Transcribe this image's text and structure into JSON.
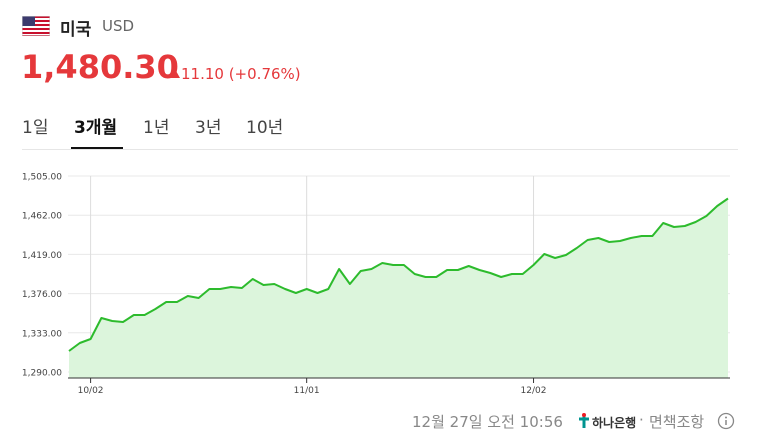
{
  "header": {
    "country": "미국",
    "currency": "USD",
    "price": "1,480.30",
    "change": "11.10 (+0.76%)"
  },
  "tabs": [
    "1일",
    "3개월",
    "1년",
    "3년",
    "10년"
  ],
  "footer": {
    "timestamp": "12월 27일 오전 10:56",
    "bank": "하나은행",
    "separator": "·",
    "disclaimer": "면책조항"
  },
  "chart_data": {
    "type": "area",
    "categories": [
      null,
      null,
      "10/02",
      null,
      null,
      null,
      null,
      null,
      null,
      null,
      null,
      null,
      null,
      null,
      null,
      null,
      null,
      null,
      null,
      null,
      null,
      null,
      "11/01",
      null,
      null,
      null,
      null,
      null,
      null,
      null,
      null,
      null,
      null,
      null,
      null,
      null,
      null,
      null,
      null,
      null,
      null,
      null,
      null,
      "12/02",
      null,
      null,
      null,
      null,
      null,
      null,
      null,
      null,
      null,
      null,
      null,
      null,
      null,
      null,
      null,
      null,
      null,
      null
    ],
    "values": [
      1313.0,
      1321.8,
      1326.2,
      1349.2,
      1345.9,
      1344.8,
      1352.5,
      1352.5,
      1359.1,
      1366.8,
      1366.8,
      1373.4,
      1371.2,
      1381.0,
      1381.0,
      1383.2,
      1382.1,
      1392.0,
      1385.4,
      1386.5,
      1381.0,
      1376.7,
      1381.0,
      1376.7,
      1381.0,
      1403.0,
      1386.5,
      1400.8,
      1403.0,
      1409.6,
      1407.4,
      1407.4,
      1397.5,
      1394.2,
      1394.2,
      1401.9,
      1401.9,
      1406.3,
      1401.9,
      1398.6,
      1394.2,
      1397.5,
      1397.5,
      1407.4,
      1419.4,
      1415.0,
      1418.3,
      1426.0,
      1434.8,
      1437.0,
      1432.6,
      1433.7,
      1437.0,
      1439.2,
      1439.2,
      1453.4,
      1449.1,
      1450.2,
      1454.5,
      1461.1,
      1472.1,
      1480.3
    ],
    "color": "#2dbb2d",
    "fill": "#dcf5dc",
    "ylim": [
      1290,
      1505
    ],
    "yticks": [
      {
        "value": 1290,
        "label": "1,290.00"
      },
      {
        "value": 1333,
        "label": "1,333.00"
      },
      {
        "value": 1376,
        "label": "1,376.00"
      },
      {
        "value": 1419,
        "label": "1,419.00"
      },
      {
        "value": 1462,
        "label": "1,462.00"
      },
      {
        "value": 1505,
        "label": "1,505.00"
      }
    ],
    "grid": true
  }
}
